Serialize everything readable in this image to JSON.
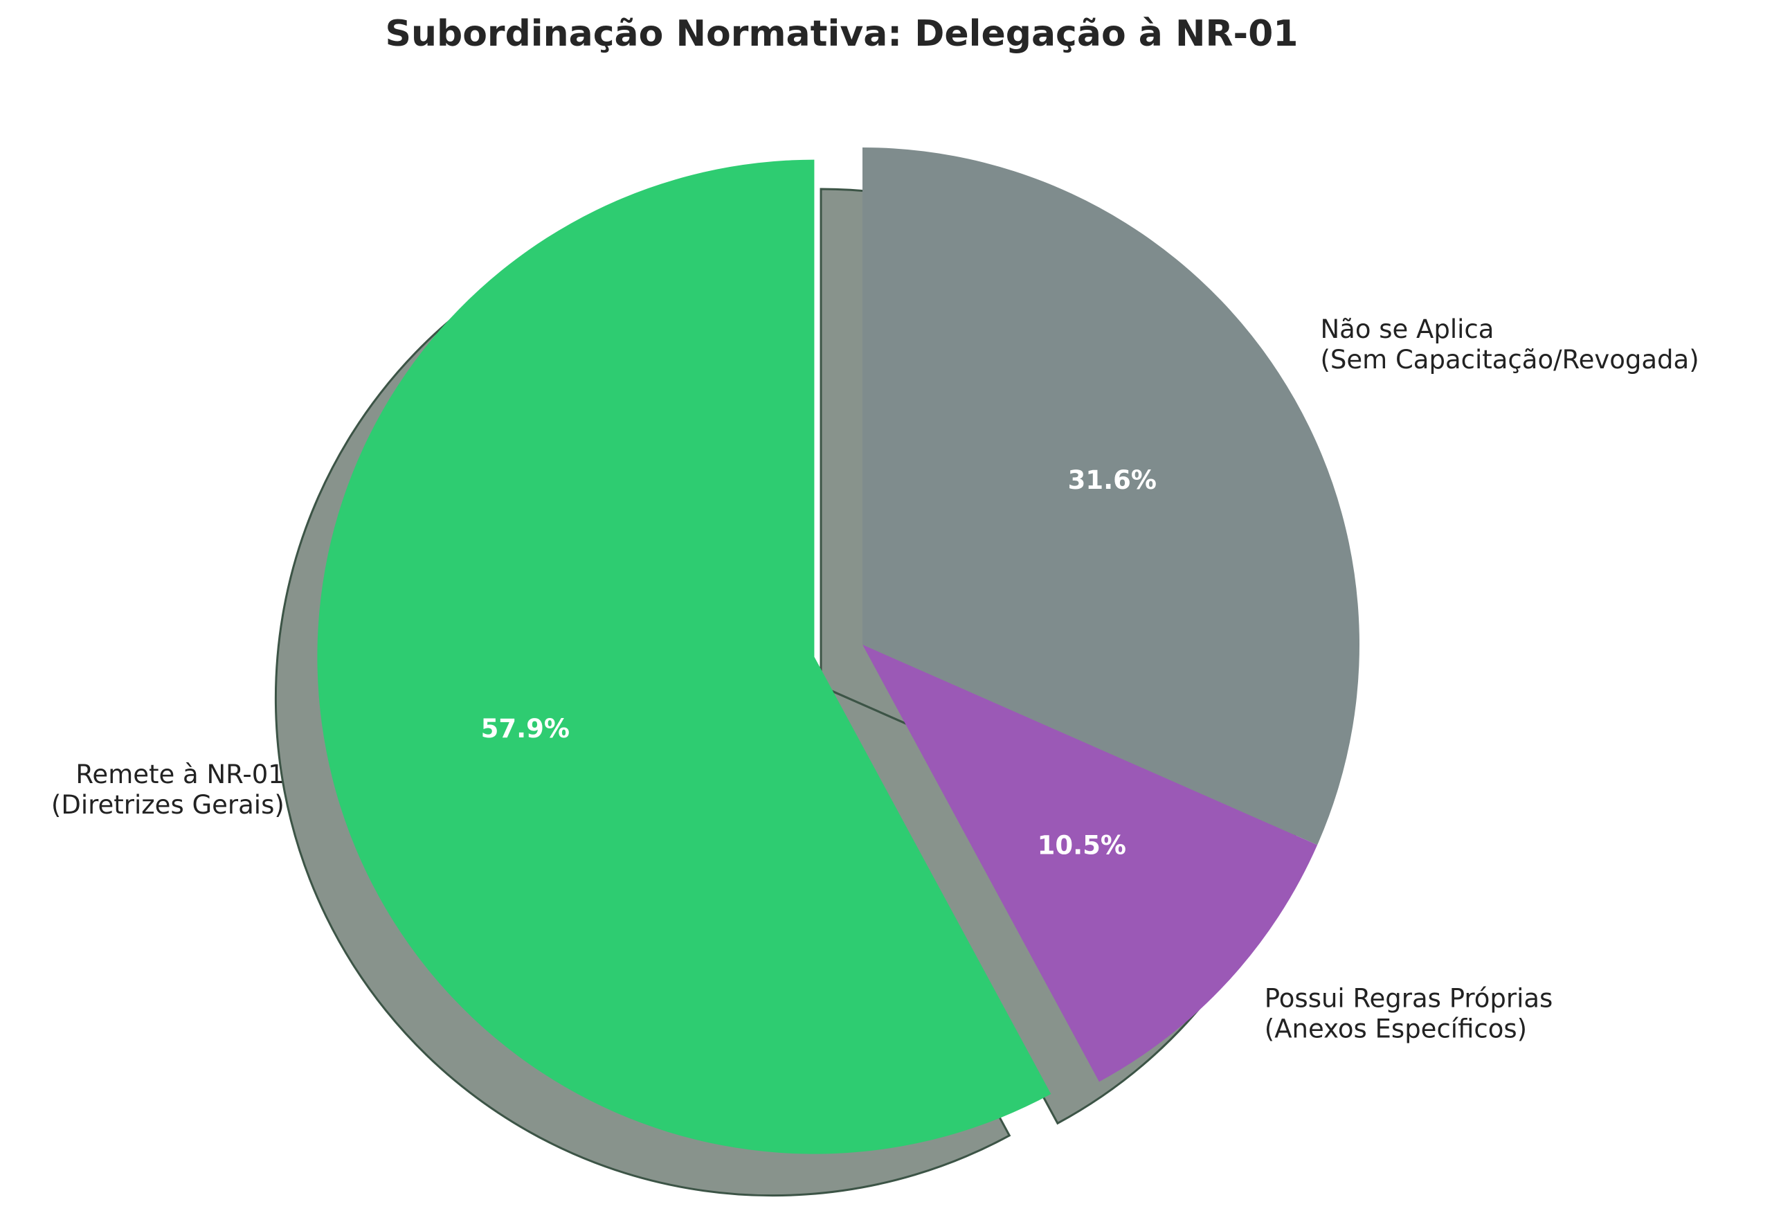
{
  "chart_data": {
    "type": "pie",
    "title": "Subordinação Normativa: Delegação à NR-01",
    "labels": [
      [
        "Remete à NR-01",
        "(Diretrizes Gerais)"
      ],
      [
        "Possui Regras Próprias",
        "(Anexos Específicos)"
      ],
      [
        "Não se Aplica",
        "(Sem Capacitação/Revogada)"
      ]
    ],
    "values": [
      57.9,
      10.5,
      31.6
    ],
    "value_labels": [
      "57.9%",
      "10.5%",
      "31.6%"
    ],
    "colors": [
      "#2ecc71",
      "#9b59b6",
      "#7f8c8d"
    ],
    "explode": [
      0.1,
      0,
      0
    ],
    "start_angle": 90,
    "shadow": true
  }
}
